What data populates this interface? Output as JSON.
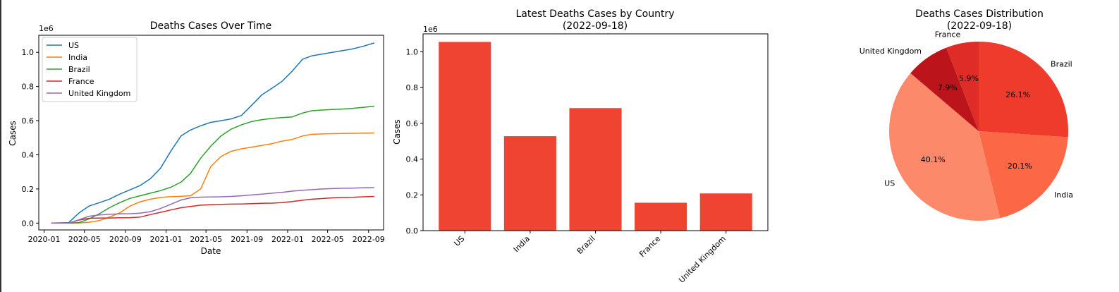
{
  "chart_data": [
    {
      "type": "line",
      "title": "Deaths Cases Over Time",
      "xlabel": "Date",
      "ylabel": "Cases",
      "y_scale_label": "1e6",
      "ylim": [
        -0.04,
        1.1
      ],
      "xlim": [
        "2019-12-16",
        "2022-10-16"
      ],
      "yticks": [
        0.0,
        0.2,
        0.4,
        0.6,
        0.8,
        1.0
      ],
      "ytick_labels": [
        "0.0",
        "0.2",
        "0.4",
        "0.6",
        "0.8",
        "1.0"
      ],
      "xticks": [
        "2020-01-01",
        "2020-05-01",
        "2020-09-01",
        "2021-01-01",
        "2021-05-01",
        "2021-09-01",
        "2022-01-01",
        "2022-05-01",
        "2022-09-01"
      ],
      "xtick_labels": [
        "2020-01",
        "2020-05",
        "2020-09",
        "2021-01",
        "2021-05",
        "2021-09",
        "2022-01",
        "2022-05",
        "2022-09"
      ],
      "legend_position": "upper-left",
      "x": [
        "2020-01-22",
        "2020-03-15",
        "2020-04-15",
        "2020-05-15",
        "2020-06-15",
        "2020-07-15",
        "2020-08-15",
        "2020-09-15",
        "2020-10-15",
        "2020-11-15",
        "2020-12-15",
        "2021-01-15",
        "2021-02-15",
        "2021-03-15",
        "2021-04-15",
        "2021-05-15",
        "2021-06-15",
        "2021-07-15",
        "2021-08-15",
        "2021-09-15",
        "2021-10-15",
        "2021-11-15",
        "2021-12-15",
        "2022-01-15",
        "2022-02-15",
        "2022-03-15",
        "2022-04-15",
        "2022-05-15",
        "2022-06-15",
        "2022-07-15",
        "2022-08-15",
        "2022-09-18"
      ],
      "series": [
        {
          "name": "US",
          "color": "#1f77b4",
          "values": [
            0.0,
            0.003,
            0.06,
            0.1,
            0.12,
            0.14,
            0.17,
            0.195,
            0.22,
            0.26,
            0.32,
            0.42,
            0.51,
            0.545,
            0.57,
            0.59,
            0.6,
            0.61,
            0.63,
            0.69,
            0.75,
            0.79,
            0.83,
            0.89,
            0.96,
            0.98,
            0.99,
            1.0,
            1.01,
            1.02,
            1.035,
            1.055
          ]
        },
        {
          "name": "India",
          "color": "#ff7f0e",
          "values": [
            0.0,
            0.0,
            0.001,
            0.005,
            0.015,
            0.035,
            0.06,
            0.1,
            0.125,
            0.14,
            0.15,
            0.155,
            0.157,
            0.16,
            0.2,
            0.33,
            0.39,
            0.42,
            0.435,
            0.445,
            0.455,
            0.465,
            0.48,
            0.49,
            0.51,
            0.52,
            0.522,
            0.524,
            0.525,
            0.526,
            0.527,
            0.528
          ]
        },
        {
          "name": "Brazil",
          "color": "#2ca02c",
          "values": [
            0.0,
            0.0,
            0.003,
            0.025,
            0.055,
            0.09,
            0.12,
            0.145,
            0.16,
            0.175,
            0.19,
            0.21,
            0.24,
            0.29,
            0.38,
            0.45,
            0.51,
            0.55,
            0.575,
            0.595,
            0.605,
            0.613,
            0.618,
            0.622,
            0.645,
            0.658,
            0.662,
            0.665,
            0.668,
            0.672,
            0.678,
            0.685
          ]
        },
        {
          "name": "France",
          "color": "#d62728",
          "values": [
            0.0,
            0.0,
            0.018,
            0.028,
            0.03,
            0.03,
            0.031,
            0.032,
            0.035,
            0.05,
            0.063,
            0.077,
            0.09,
            0.097,
            0.105,
            0.108,
            0.11,
            0.111,
            0.112,
            0.114,
            0.116,
            0.117,
            0.12,
            0.126,
            0.134,
            0.14,
            0.144,
            0.148,
            0.15,
            0.151,
            0.154,
            0.156
          ]
        },
        {
          "name": "United Kingdom",
          "color": "#9467bd",
          "values": [
            0.0,
            0.0,
            0.02,
            0.04,
            0.048,
            0.052,
            0.054,
            0.055,
            0.058,
            0.067,
            0.085,
            0.11,
            0.135,
            0.148,
            0.152,
            0.153,
            0.154,
            0.156,
            0.16,
            0.165,
            0.17,
            0.175,
            0.18,
            0.187,
            0.192,
            0.196,
            0.2,
            0.202,
            0.204,
            0.205,
            0.207,
            0.208
          ]
        }
      ]
    },
    {
      "type": "bar",
      "title": "Latest Deaths Cases by Country",
      "subtitle": "(2022-09-18)",
      "xlabel": "",
      "ylabel": "Cases",
      "y_scale_label": "1e6",
      "ylim": [
        0,
        1.1
      ],
      "yticks": [
        0.0,
        0.2,
        0.4,
        0.6,
        0.8,
        1.0
      ],
      "ytick_labels": [
        "0.0",
        "0.2",
        "0.4",
        "0.6",
        "0.8",
        "1.0"
      ],
      "color": "#f04432",
      "categories": [
        "US",
        "India",
        "Brazil",
        "France",
        "United Kingdom"
      ],
      "values": [
        1.055,
        0.528,
        0.685,
        0.156,
        0.208
      ]
    },
    {
      "type": "pie",
      "title": "Deaths Cases Distribution",
      "subtitle": "(2022-09-18)",
      "labels": [
        "Brazil",
        "India",
        "US",
        "United Kingdom",
        "France"
      ],
      "values": [
        26.1,
        20.1,
        40.1,
        7.9,
        5.9
      ],
      "pct_labels": [
        "26.1%",
        "20.1%",
        "40.1%",
        "7.9%",
        "5.9%"
      ],
      "colors": [
        "#ef3b2c",
        "#fc6746",
        "#fc8a6a",
        "#bb141a",
        "#e02c26"
      ]
    }
  ]
}
